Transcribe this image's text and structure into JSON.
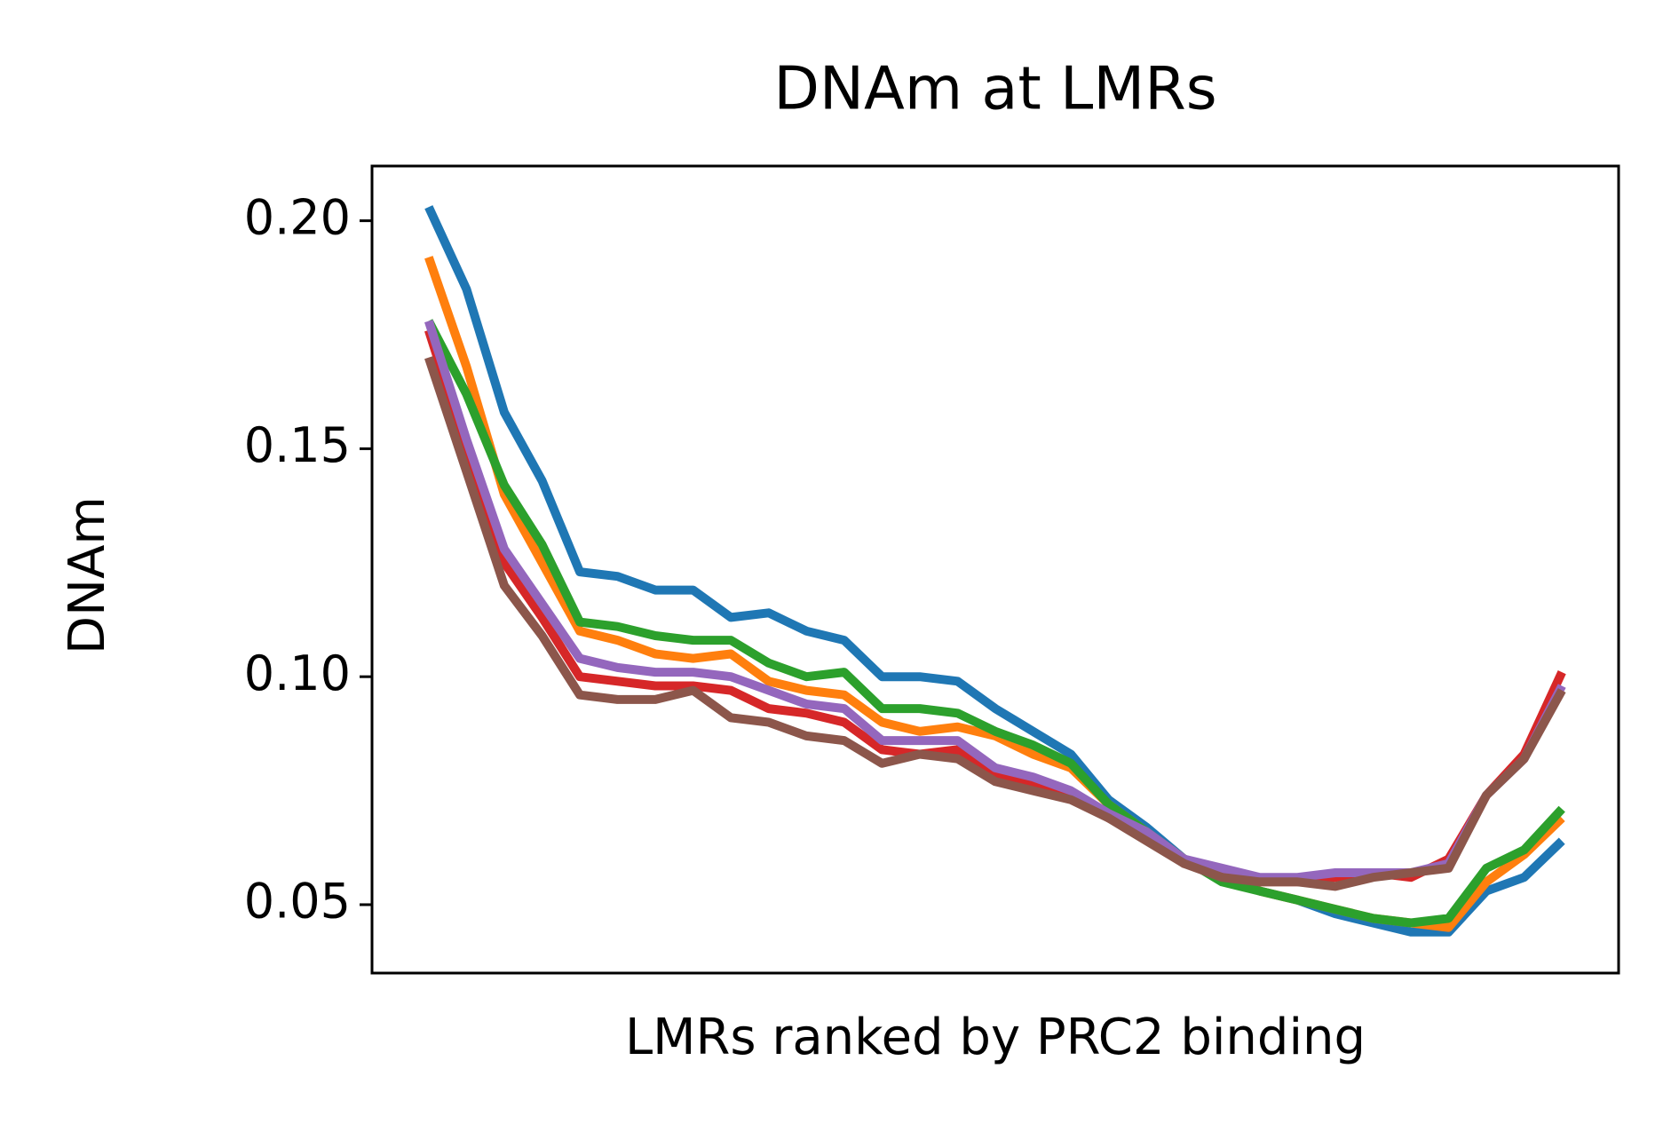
{
  "chart_data": {
    "type": "line",
    "title": "DNAm at LMRs",
    "xlabel": "LMRs ranked by PRC2 binding",
    "ylabel": "DNAm",
    "x": [
      0,
      1,
      2,
      3,
      4,
      5,
      6,
      7,
      8,
      9,
      10,
      11,
      12,
      13,
      14,
      15,
      16,
      17,
      18,
      19,
      20,
      21,
      22,
      23,
      24,
      25,
      26,
      27,
      28,
      29,
      30
    ],
    "xlim": [
      -1.5,
      31.5
    ],
    "ylim": [
      0.035,
      0.212
    ],
    "yticks": [
      {
        "value": 0.05,
        "label": "0.05"
      },
      {
        "value": 0.1,
        "label": "0.10"
      },
      {
        "value": 0.15,
        "label": "0.15"
      },
      {
        "value": 0.2,
        "label": "0.20"
      }
    ],
    "series": [
      {
        "color": "#1f77b4",
        "values": [
          0.203,
          0.185,
          0.158,
          0.143,
          0.123,
          0.122,
          0.119,
          0.119,
          0.113,
          0.114,
          0.11,
          0.108,
          0.1,
          0.1,
          0.099,
          0.093,
          0.088,
          0.083,
          0.073,
          0.067,
          0.06,
          0.057,
          0.053,
          0.051,
          0.048,
          0.046,
          0.044,
          0.044,
          0.053,
          0.056,
          0.064
        ]
      },
      {
        "color": "#ff7f0e",
        "values": [
          0.192,
          0.168,
          0.14,
          0.125,
          0.11,
          0.108,
          0.105,
          0.104,
          0.105,
          0.099,
          0.097,
          0.096,
          0.09,
          0.088,
          0.089,
          0.087,
          0.083,
          0.08,
          0.072,
          0.066,
          0.06,
          0.056,
          0.053,
          0.051,
          0.049,
          0.047,
          0.046,
          0.045,
          0.055,
          0.061,
          0.069
        ]
      },
      {
        "color": "#2ca02c",
        "values": [
          0.178,
          0.162,
          0.142,
          0.129,
          0.112,
          0.111,
          0.109,
          0.108,
          0.108,
          0.103,
          0.1,
          0.101,
          0.093,
          0.093,
          0.092,
          0.088,
          0.085,
          0.081,
          0.072,
          0.066,
          0.06,
          0.055,
          0.053,
          0.051,
          0.049,
          0.047,
          0.046,
          0.047,
          0.058,
          0.062,
          0.071
        ]
      },
      {
        "color": "#d62728",
        "values": [
          0.176,
          0.15,
          0.125,
          0.113,
          0.1,
          0.099,
          0.098,
          0.098,
          0.097,
          0.093,
          0.092,
          0.09,
          0.084,
          0.083,
          0.084,
          0.079,
          0.076,
          0.074,
          0.069,
          0.065,
          0.059,
          0.057,
          0.055,
          0.055,
          0.056,
          0.057,
          0.056,
          0.06,
          0.074,
          0.083,
          0.101
        ]
      },
      {
        "color": "#9467bd",
        "values": [
          0.178,
          0.152,
          0.128,
          0.116,
          0.104,
          0.102,
          0.101,
          0.101,
          0.1,
          0.097,
          0.094,
          0.093,
          0.086,
          0.086,
          0.086,
          0.08,
          0.078,
          0.075,
          0.07,
          0.066,
          0.06,
          0.058,
          0.056,
          0.056,
          0.057,
          0.057,
          0.057,
          0.059,
          0.074,
          0.082,
          0.098
        ]
      },
      {
        "color": "#8c564b",
        "values": [
          0.17,
          0.145,
          0.12,
          0.109,
          0.096,
          0.095,
          0.095,
          0.097,
          0.091,
          0.09,
          0.087,
          0.086,
          0.081,
          0.083,
          0.082,
          0.077,
          0.075,
          0.073,
          0.069,
          0.064,
          0.059,
          0.056,
          0.055,
          0.055,
          0.054,
          0.056,
          0.057,
          0.058,
          0.074,
          0.082,
          0.097
        ]
      }
    ]
  }
}
